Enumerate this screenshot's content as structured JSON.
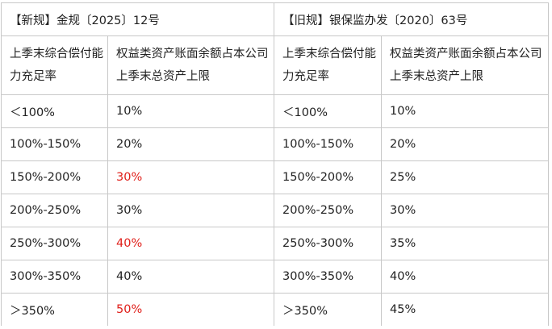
{
  "new_rule": {
    "title": "【新规】金规〔2025〕12号",
    "col1_header": "上季末综合偿付能力充足率",
    "col2_header": "权益类资产账面余额占本公司上季末总资产上限"
  },
  "old_rule": {
    "title": "【旧规】银保监办发〔2020〕63号",
    "col1_header": "上季末综合偿付能力充足率",
    "col2_header": "权益类资产账面余额占本公司上季末总资产上限"
  },
  "highlight_color": "#e0201b",
  "rows": [
    {
      "new_ratio": "＜100%",
      "new_limit": "10%",
      "new_changed": false,
      "old_ratio": "＜100%",
      "old_limit": "10%"
    },
    {
      "new_ratio": "100%-150%",
      "new_limit": "20%",
      "new_changed": false,
      "old_ratio": "100%-150%",
      "old_limit": "20%"
    },
    {
      "new_ratio": "150%-200%",
      "new_limit": "30%",
      "new_changed": true,
      "old_ratio": "150%-200%",
      "old_limit": "25%"
    },
    {
      "new_ratio": "200%-250%",
      "new_limit": "30%",
      "new_changed": false,
      "old_ratio": "200%-250%",
      "old_limit": "30%"
    },
    {
      "new_ratio": "250%-300%",
      "new_limit": "40%",
      "new_changed": true,
      "old_ratio": "250%-300%",
      "old_limit": "35%"
    },
    {
      "new_ratio": "300%-350%",
      "new_limit": "40%",
      "new_changed": false,
      "old_ratio": "300%-350%",
      "old_limit": "40%"
    },
    {
      "new_ratio": "＞350%",
      "new_limit": "50%",
      "new_changed": true,
      "old_ratio": "＞350%",
      "old_limit": "45%"
    }
  ]
}
